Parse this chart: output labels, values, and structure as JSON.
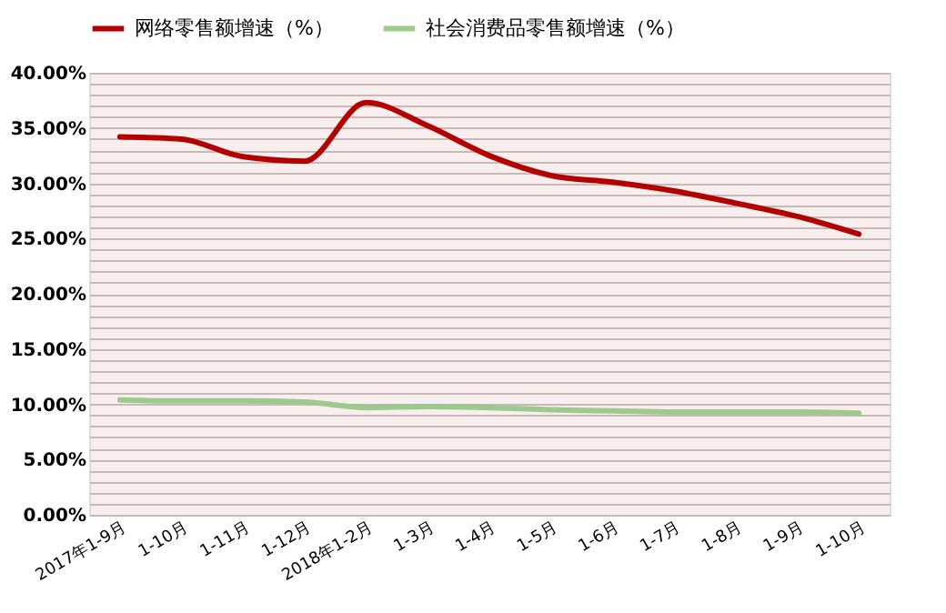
{
  "chart_data": {
    "type": "line",
    "categories": [
      "2017年1-9月",
      "1-10月",
      "1-11月",
      "1-12月",
      "2018年1-2月",
      "1-3月",
      "1-4月",
      "1-5月",
      "1-6月",
      "1-7月",
      "1-8月",
      "1-9月",
      "1-10月"
    ],
    "series": [
      {
        "name": "网络零售额增速（%）",
        "color": "#b30000",
        "values": [
          34.2,
          34.0,
          32.4,
          32.0,
          37.3,
          35.2,
          32.5,
          30.7,
          30.1,
          29.3,
          28.2,
          27.0,
          25.4
        ]
      },
      {
        "name": "社会消费品零售额增速（%）",
        "color": "#9cc98c",
        "values": [
          10.4,
          10.3,
          10.3,
          10.2,
          9.7,
          9.8,
          9.7,
          9.5,
          9.4,
          9.3,
          9.3,
          9.3,
          9.2
        ]
      }
    ],
    "ylim": [
      0,
      40
    ],
    "yticks": [
      {
        "value": 0,
        "label": "0.00%"
      },
      {
        "value": 1,
        "label": null
      },
      {
        "value": 2,
        "label": null
      },
      {
        "value": 3,
        "label": null
      },
      {
        "value": 4,
        "label": null
      },
      {
        "value": 5,
        "label": "5.00%"
      },
      {
        "value": 6,
        "label": null
      },
      {
        "value": 7,
        "label": null
      },
      {
        "value": 8,
        "label": null
      },
      {
        "value": 9,
        "label": null
      },
      {
        "value": 10,
        "label": "10.00%"
      },
      {
        "value": 11,
        "label": null
      },
      {
        "value": 12,
        "label": null
      },
      {
        "value": 13,
        "label": null
      },
      {
        "value": 14,
        "label": null
      },
      {
        "value": 15,
        "label": "15.00%"
      },
      {
        "value": 16,
        "label": null
      },
      {
        "value": 17,
        "label": null
      },
      {
        "value": 18,
        "label": null
      },
      {
        "value": 19,
        "label": null
      },
      {
        "value": 20,
        "label": "20.00%"
      },
      {
        "value": 21,
        "label": null
      },
      {
        "value": 22,
        "label": null
      },
      {
        "value": 23,
        "label": null
      },
      {
        "value": 24,
        "label": null
      },
      {
        "value": 25,
        "label": "25.00%"
      },
      {
        "value": 26,
        "label": null
      },
      {
        "value": 27,
        "label": null
      },
      {
        "value": 28,
        "label": null
      },
      {
        "value": 29,
        "label": null
      },
      {
        "value": 30,
        "label": "30.00%"
      },
      {
        "value": 31,
        "label": null
      },
      {
        "value": 32,
        "label": null
      },
      {
        "value": 33,
        "label": null
      },
      {
        "value": 34,
        "label": null
      },
      {
        "value": 35,
        "label": "35.00%"
      },
      {
        "value": 36,
        "label": null
      },
      {
        "value": 37,
        "label": null
      },
      {
        "value": 38,
        "label": null
      },
      {
        "value": 39,
        "label": null
      },
      {
        "value": 40,
        "label": "40.00%"
      }
    ],
    "grid": "y",
    "legend": "top",
    "marker": "none",
    "line_style": "solid"
  }
}
